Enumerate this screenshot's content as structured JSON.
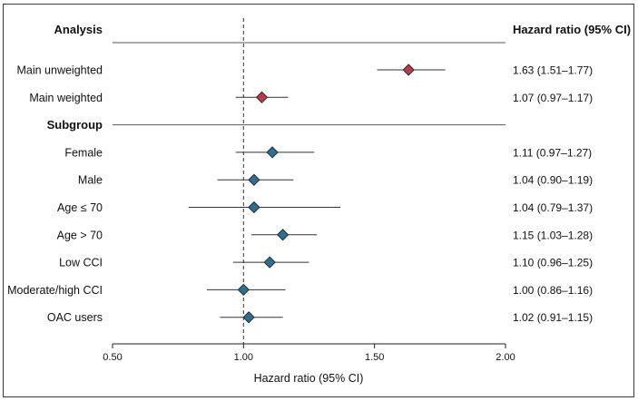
{
  "chart_data": {
    "type": "forest",
    "xlabel": "Hazard ratio (95% CI)",
    "header_left": "Analysis",
    "header_right": "Hazard ratio (95% CI)",
    "xlim": [
      0.5,
      2.0
    ],
    "ticks": [
      "0.50",
      "1.00",
      "1.50",
      "2.00"
    ],
    "ticks_num": [
      0.5,
      1.0,
      1.5,
      2.0
    ],
    "reference_line": 1.0,
    "colors": {
      "main": "#b83a4b",
      "subgroup": "#2e6e92"
    },
    "rows": [
      {
        "label": "Main unweighted",
        "hr": 1.63,
        "lo": 1.51,
        "hi": 1.77,
        "text": "1.63 (1.51–1.77)",
        "group": "main"
      },
      {
        "label": "Main weighted",
        "hr": 1.07,
        "lo": 0.97,
        "hi": 1.17,
        "text": "1.07 (0.97–1.17)",
        "group": "main"
      },
      {
        "label": "Subgroup",
        "heading": true
      },
      {
        "label": "Female",
        "hr": 1.11,
        "lo": 0.97,
        "hi": 1.27,
        "text": "1.11 (0.97–1.27)",
        "group": "subgroup"
      },
      {
        "label": "Male",
        "hr": 1.04,
        "lo": 0.9,
        "hi": 1.19,
        "text": "1.04 (0.90–1.19)",
        "group": "subgroup"
      },
      {
        "label": "Age ≤ 70",
        "hr": 1.04,
        "lo": 0.79,
        "hi": 1.37,
        "text": "1.04 (0.79–1.37)",
        "group": "subgroup"
      },
      {
        "label": "Age > 70",
        "hr": 1.15,
        "lo": 1.03,
        "hi": 1.28,
        "text": "1.15 (1.03–1.28)",
        "group": "subgroup"
      },
      {
        "label": "Low CCI",
        "hr": 1.1,
        "lo": 0.96,
        "hi": 1.25,
        "text": "1.10 (0.96–1.25)",
        "group": "subgroup"
      },
      {
        "label": "Moderate/high CCI",
        "hr": 1.0,
        "lo": 0.86,
        "hi": 1.16,
        "text": "1.00 (0.86–1.16)",
        "group": "subgroup"
      },
      {
        "label": "OAC users",
        "hr": 1.02,
        "lo": 0.91,
        "hi": 1.15,
        "text": "1.02 (0.91–1.15)",
        "group": "subgroup"
      }
    ]
  }
}
